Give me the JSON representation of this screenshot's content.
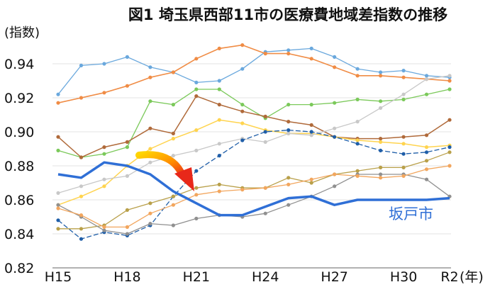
{
  "chart_data": {
    "type": "line",
    "title": "図1 埼玉県西部11市の医療費地域差指数の推移",
    "ylabel": "(指数)",
    "xlabel": "(年)",
    "ylim": [
      0.82,
      0.95
    ],
    "yticks": [
      0.82,
      0.84,
      0.86,
      0.88,
      0.9,
      0.92,
      0.94
    ],
    "ytick_labels": [
      "0.82",
      "0.84",
      "0.86",
      "0.88",
      "0.90",
      "0.92",
      "0.94"
    ],
    "x": [
      "H15",
      "H16",
      "H17",
      "H18",
      "H19",
      "H20",
      "H21",
      "H22",
      "H23",
      "H24",
      "H25",
      "H26",
      "H27",
      "H28",
      "H29",
      "H30",
      "H31",
      "R2"
    ],
    "xtick_labels": [
      "H15",
      "H18",
      "H21",
      "H24",
      "H27",
      "H30",
      "R2"
    ],
    "grid": true,
    "highlight_label": "坂戸市",
    "series": [
      {
        "name": "坂戸市",
        "color": "#2f6fd6",
        "width": 3.5,
        "marker": false,
        "values": [
          0.875,
          0.873,
          0.882,
          0.88,
          0.875,
          0.865,
          0.858,
          0.851,
          0.851,
          0.856,
          0.861,
          0.862,
          0.857,
          0.86,
          0.86,
          0.86,
          0.86,
          0.861
        ]
      },
      {
        "color": "#6aa8dd",
        "width": 1.3,
        "marker": true,
        "values": [
          0.922,
          0.939,
          0.94,
          0.944,
          0.938,
          0.935,
          0.929,
          0.93,
          0.937,
          0.947,
          0.948,
          0.949,
          0.944,
          0.937,
          0.935,
          0.936,
          0.933,
          0.932
        ]
      },
      {
        "color": "#f08c45",
        "width": 1.6,
        "marker": true,
        "values": [
          0.917,
          0.92,
          0.923,
          0.927,
          0.932,
          0.935,
          0.943,
          0.949,
          0.951,
          0.946,
          0.946,
          0.943,
          0.938,
          0.933,
          0.933,
          0.932,
          0.931,
          0.93
        ]
      },
      {
        "color": "#7bc95a",
        "width": 1.3,
        "marker": true,
        "values": [
          0.889,
          0.885,
          0.887,
          0.891,
          0.918,
          0.916,
          0.925,
          0.925,
          0.916,
          0.908,
          0.916,
          0.916,
          0.917,
          0.919,
          0.918,
          0.919,
          0.922,
          0.925
        ]
      },
      {
        "color": "#b06a3a",
        "width": 1.5,
        "marker": true,
        "values": [
          0.897,
          0.885,
          0.891,
          0.894,
          0.902,
          0.899,
          0.921,
          0.916,
          0.912,
          0.909,
          0.906,
          0.904,
          0.897,
          0.896,
          0.896,
          0.897,
          0.898,
          0.907
        ]
      },
      {
        "color": "#ffd44f",
        "width": 1.5,
        "marker": true,
        "values": [
          0.857,
          0.862,
          0.868,
          0.88,
          0.89,
          0.896,
          0.901,
          0.907,
          0.905,
          0.901,
          0.899,
          0.899,
          0.897,
          0.895,
          0.894,
          0.893,
          0.891,
          0.892
        ]
      },
      {
        "color": "#c8c8c8",
        "width": 1.3,
        "marker": true,
        "values": [
          0.864,
          0.868,
          0.872,
          0.874,
          0.882,
          0.886,
          0.889,
          0.893,
          0.896,
          0.894,
          0.899,
          0.898,
          0.902,
          0.906,
          0.914,
          0.922,
          0.931,
          0.933
        ]
      },
      {
        "color": "#1f5ea8",
        "width": 1.3,
        "marker": true,
        "dashed": true,
        "values": [
          0.848,
          0.837,
          0.841,
          0.839,
          0.845,
          0.862,
          0.877,
          0.886,
          0.895,
          0.9,
          0.901,
          0.9,
          0.897,
          0.893,
          0.889,
          0.887,
          0.888,
          0.891
        ]
      },
      {
        "color": "#b9a04a",
        "width": 1.3,
        "marker": true,
        "values": [
          0.843,
          0.843,
          0.845,
          0.854,
          0.858,
          0.862,
          0.867,
          0.869,
          0.867,
          0.867,
          0.873,
          0.87,
          0.875,
          0.877,
          0.879,
          0.879,
          0.883,
          0.888
        ]
      },
      {
        "color": "#909090",
        "width": 1.3,
        "marker": true,
        "values": [
          0.857,
          0.85,
          0.842,
          0.84,
          0.846,
          0.845,
          0.849,
          0.851,
          0.85,
          0.852,
          0.857,
          0.862,
          0.868,
          0.875,
          0.875,
          0.875,
          0.872,
          0.862
        ]
      },
      {
        "color": "#f2a65e",
        "width": 1.3,
        "marker": true,
        "values": [
          0.855,
          0.851,
          0.844,
          0.844,
          0.852,
          0.857,
          0.863,
          0.865,
          0.866,
          0.867,
          0.869,
          0.872,
          0.875,
          0.874,
          0.873,
          0.874,
          0.878,
          0.88
        ]
      }
    ]
  }
}
